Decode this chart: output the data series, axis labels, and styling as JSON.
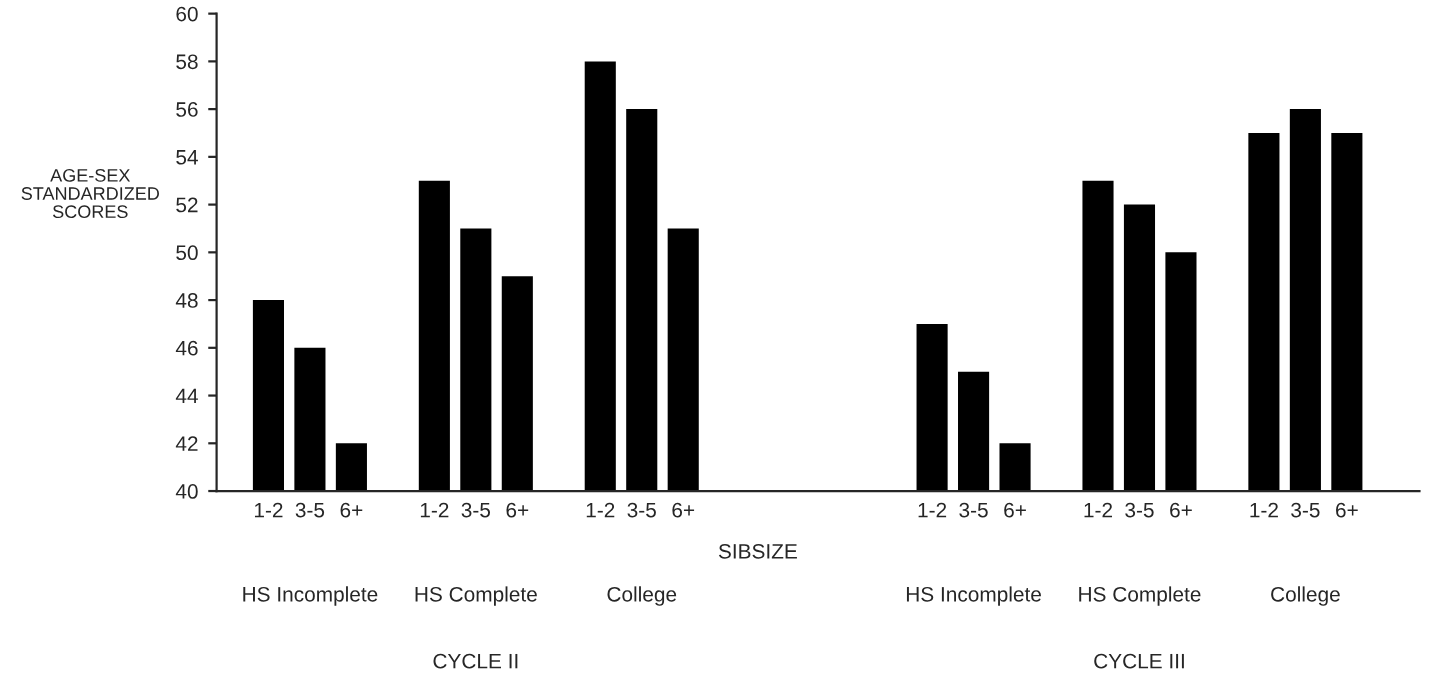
{
  "chart_data": {
    "type": "bar",
    "ylabel": "AGE-SEX\nSTANDARDIZED\nSCORES",
    "xlabel": "SIBSIZE",
    "categories": [
      "1-2",
      "3-5",
      "6+",
      null,
      "1-2",
      "3-5",
      "6+",
      null,
      "1-2",
      "3-5",
      "6+",
      null,
      null,
      null,
      null,
      null,
      "1-2",
      "3-5",
      "6+",
      null,
      "1-2",
      "3-5",
      "6+",
      null,
      "1-2",
      "3-5",
      "6+"
    ],
    "values": [
      48,
      46,
      42,
      null,
      53,
      51,
      49,
      null,
      58,
      56,
      51,
      null,
      null,
      null,
      null,
      null,
      47,
      45,
      42,
      null,
      53,
      52,
      50,
      null,
      55,
      56,
      55
    ],
    "color": "#000000",
    "ylim": [
      40,
      60
    ],
    "yticks": [
      40,
      42,
      44,
      46,
      48,
      50,
      52,
      54,
      56,
      58,
      60
    ],
    "grid": false,
    "annotations": [
      "HS Incomplete",
      "HS Complete",
      "College",
      "HS Incomplete",
      "HS Complete",
      "College",
      "CYCLE II",
      "CYCLE III"
    ]
  }
}
